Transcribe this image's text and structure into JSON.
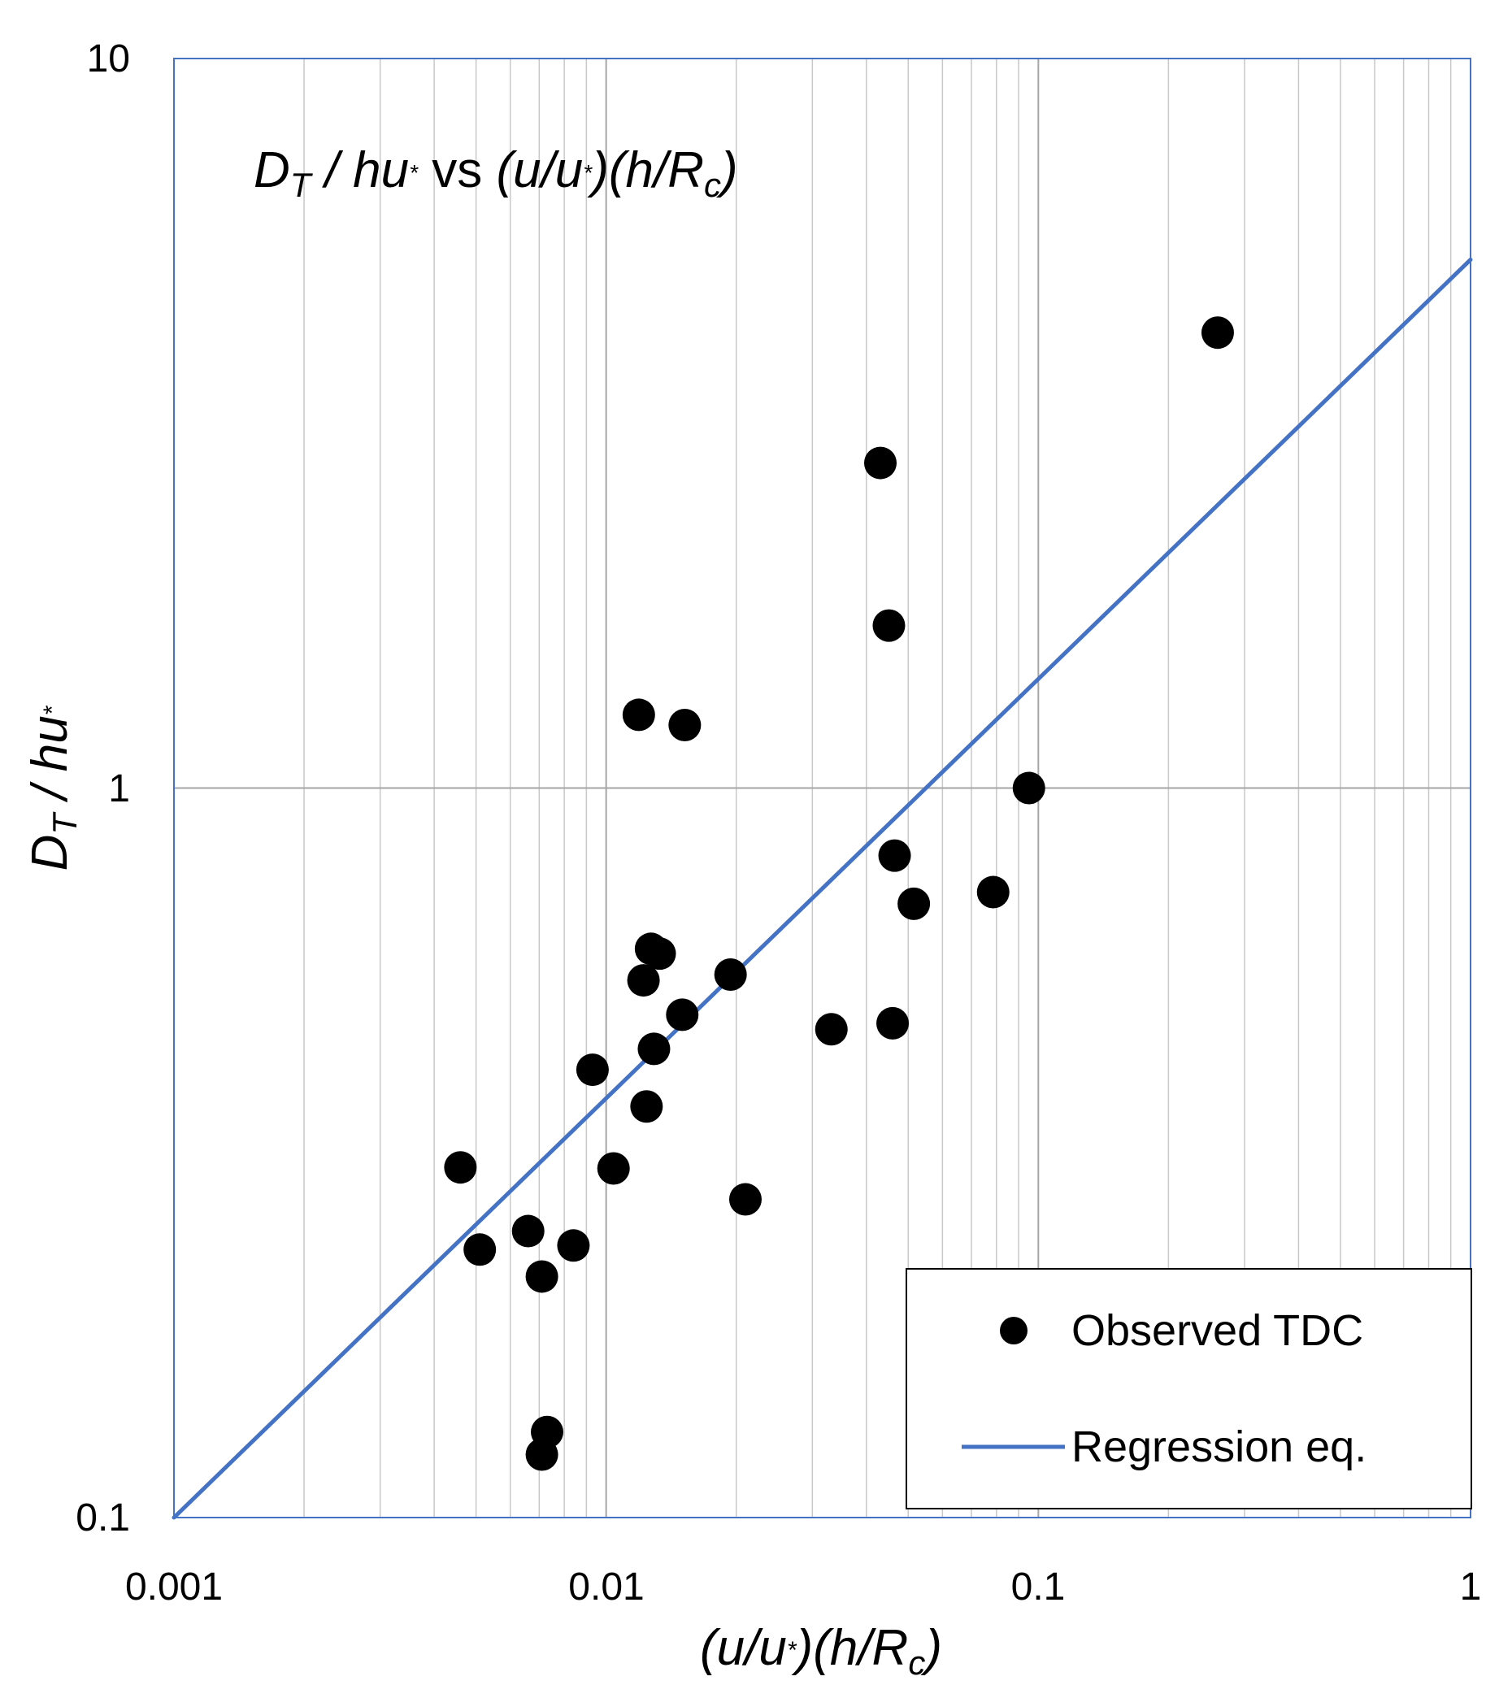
{
  "chart_data": {
    "type": "scatter",
    "title_parts": {
      "main": "D",
      "sub": "T",
      "rest": " / hu",
      "star": "*",
      "vs": " vs ",
      "rhs_a": "(u/u",
      "rhs_b": ")(h/R",
      "rhs_sub": "c",
      "rhs_c": ")"
    },
    "xlabel_parts": {
      "a": "(u/u",
      "star": "*",
      "b": ")(h/R",
      "sub": "c",
      "c": ")"
    },
    "ylabel_parts": {
      "main": "D",
      "sub": "T",
      "rest": " / hu",
      "star": "*"
    },
    "x_scale": "log",
    "y_scale": "log",
    "xlim": [
      0.001,
      1
    ],
    "ylim": [
      0.1,
      10
    ],
    "x_tick_labels": [
      "0.001",
      "0.01",
      "0.1",
      "1"
    ],
    "y_tick_labels": [
      "0.1",
      "1",
      "10"
    ],
    "grid": "vertical minor and major, horizontal major",
    "legend_position": "bottom-right",
    "series": [
      {
        "name": "Observed TDC",
        "kind": "markers",
        "color": "#000000",
        "points": [
          {
            "x": 0.0046,
            "y": 0.302
          },
          {
            "x": 0.0051,
            "y": 0.233
          },
          {
            "x": 0.0066,
            "y": 0.247
          },
          {
            "x": 0.0071,
            "y": 0.214
          },
          {
            "x": 0.0071,
            "y": 0.122
          },
          {
            "x": 0.0073,
            "y": 0.131
          },
          {
            "x": 0.0084,
            "y": 0.236
          },
          {
            "x": 0.0093,
            "y": 0.411
          },
          {
            "x": 0.0104,
            "y": 0.301
          },
          {
            "x": 0.0119,
            "y": 1.26
          },
          {
            "x": 0.0122,
            "y": 0.545
          },
          {
            "x": 0.0124,
            "y": 0.366
          },
          {
            "x": 0.0127,
            "y": 0.602
          },
          {
            "x": 0.0129,
            "y": 0.439
          },
          {
            "x": 0.0133,
            "y": 0.593
          },
          {
            "x": 0.0152,
            "y": 1.22
          },
          {
            "x": 0.015,
            "y": 0.489
          },
          {
            "x": 0.0194,
            "y": 0.555
          },
          {
            "x": 0.021,
            "y": 0.273
          },
          {
            "x": 0.0332,
            "y": 0.467
          },
          {
            "x": 0.0431,
            "y": 2.79
          },
          {
            "x": 0.0451,
            "y": 1.67
          },
          {
            "x": 0.0465,
            "y": 0.808
          },
          {
            "x": 0.046,
            "y": 0.476
          },
          {
            "x": 0.0515,
            "y": 0.694
          },
          {
            "x": 0.0786,
            "y": 0.72
          },
          {
            "x": 0.0951,
            "y": 1.0
          },
          {
            "x": 0.26,
            "y": 4.21
          }
        ]
      },
      {
        "name": "Regression eq.",
        "kind": "line",
        "color": "#4472c4",
        "points": [
          {
            "x": 0.001,
            "y": 0.1
          },
          {
            "x": 1,
            "y": 5.3
          }
        ]
      }
    ],
    "legend": {
      "entries": [
        "Observed TDC",
        "Regression eq."
      ]
    }
  }
}
